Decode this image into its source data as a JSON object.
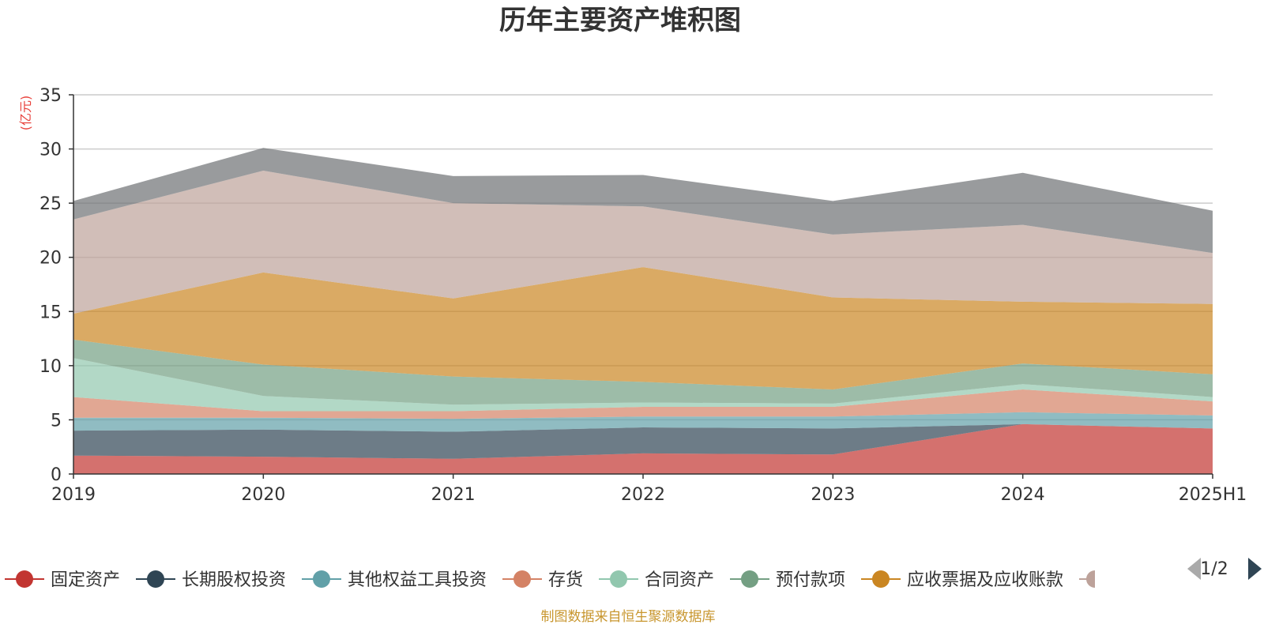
{
  "chart_data": {
    "type": "area",
    "stacked": true,
    "title": "历年主要资产堆积图",
    "ylabel": "(亿元)",
    "xlabel": "",
    "categories": [
      "2019",
      "2020",
      "2021",
      "2022",
      "2023",
      "2024",
      "2025H1"
    ],
    "ylim": [
      0,
      35
    ],
    "yticks": [
      0,
      5,
      10,
      15,
      20,
      25,
      30,
      35
    ],
    "grid": true,
    "legend_position": "bottom",
    "series": [
      {
        "name": "固定资产",
        "color": "#c23531",
        "values": [
          1.7,
          1.6,
          1.4,
          1.9,
          1.8,
          4.6,
          4.2
        ]
      },
      {
        "name": "长期股权投资",
        "color": "#2f4554",
        "values": [
          2.3,
          2.5,
          2.5,
          2.4,
          2.4,
          0.0,
          0.0
        ]
      },
      {
        "name": "其他权益工具投资",
        "color": "#61a0a8",
        "values": [
          1.2,
          1.1,
          1.2,
          1.0,
          1.1,
          1.1,
          1.2
        ]
      },
      {
        "name": "存货",
        "color": "#d48265",
        "values": [
          1.9,
          0.6,
          0.7,
          0.9,
          0.9,
          2.1,
          1.3
        ]
      },
      {
        "name": "合同资产",
        "color": "#91c7ae",
        "values": [
          3.6,
          1.4,
          0.6,
          0.4,
          0.3,
          0.5,
          0.4
        ]
      },
      {
        "name": "预付款项",
        "color": "#749f83",
        "values": [
          1.7,
          2.9,
          2.6,
          1.9,
          1.3,
          1.9,
          2.1
        ]
      },
      {
        "name": "应收票据及应收账款",
        "color": "#ca8622",
        "values": [
          2.4,
          8.5,
          7.2,
          10.6,
          8.5,
          5.7,
          6.5
        ]
      },
      {
        "name": "",
        "color": "#bda29a",
        "values": [
          8.7,
          9.4,
          8.8,
          5.6,
          5.8,
          7.1,
          4.7
        ]
      },
      {
        "name": "",
        "color": "#6e7074",
        "values": [
          1.7,
          2.1,
          2.5,
          2.9,
          3.1,
          4.8,
          3.9
        ]
      }
    ]
  },
  "legend": {
    "page_indicator": "1/2"
  },
  "footnote": "制图数据来自恒生聚源数据库"
}
